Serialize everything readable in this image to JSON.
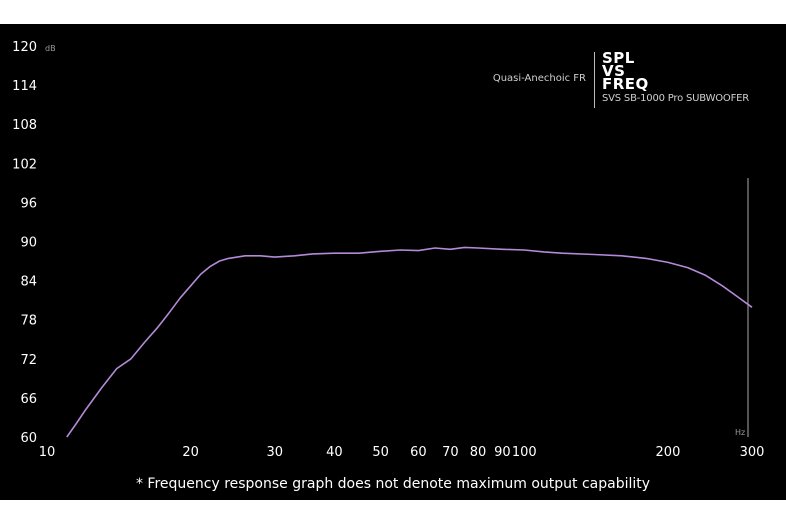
{
  "chart_data": {
    "type": "line",
    "title_lines": [
      "SPL",
      "VS",
      "FREQ"
    ],
    "product": "SVS SB-1000 Pro SUBWOOFER",
    "subtitle": "Quasi-Anechoic FR",
    "ylabel": "dB",
    "xlabel": "Hz",
    "x_scale": "log",
    "xlim": [
      10,
      300
    ],
    "ylim": [
      60,
      120
    ],
    "y_ticks": [
      120,
      114,
      108,
      102,
      96,
      90,
      84,
      78,
      72,
      66,
      60
    ],
    "x_ticks": [
      10,
      20,
      30,
      40,
      50,
      60,
      70,
      80,
      90,
      100,
      200,
      300
    ],
    "x_tick_labels": [
      "10",
      "20",
      "30",
      "40",
      "50",
      "60",
      "70",
      "80",
      "90",
      "100",
      "200",
      "300"
    ],
    "grid": false,
    "line_color": "#b48ad8",
    "series": [
      {
        "x": [
          11,
          11.5,
          12,
          13,
          14,
          15,
          16,
          17,
          18,
          19,
          20,
          21,
          22,
          23,
          24,
          26,
          28,
          30,
          33,
          36,
          40,
          45,
          50,
          55,
          60,
          65,
          70,
          75,
          80,
          90,
          100,
          110,
          120,
          140,
          160,
          180,
          200,
          220,
          240,
          260,
          280,
          300
        ],
        "y": [
          60,
          62,
          64,
          67.5,
          70.5,
          72,
          74.5,
          76.7,
          79,
          81.3,
          83.2,
          85,
          86.2,
          87,
          87.4,
          87.8,
          87.8,
          87.6,
          87.8,
          88.1,
          88.2,
          88.2,
          88.5,
          88.7,
          88.6,
          89.0,
          88.8,
          89.1,
          89.0,
          88.8,
          88.7,
          88.4,
          88.2,
          88.0,
          87.8,
          87.4,
          86.8,
          86.0,
          84.8,
          83.2,
          81.5,
          79.9
        ]
      }
    ]
  },
  "footnote": "* Frequency response graph does not denote maximum output capability"
}
